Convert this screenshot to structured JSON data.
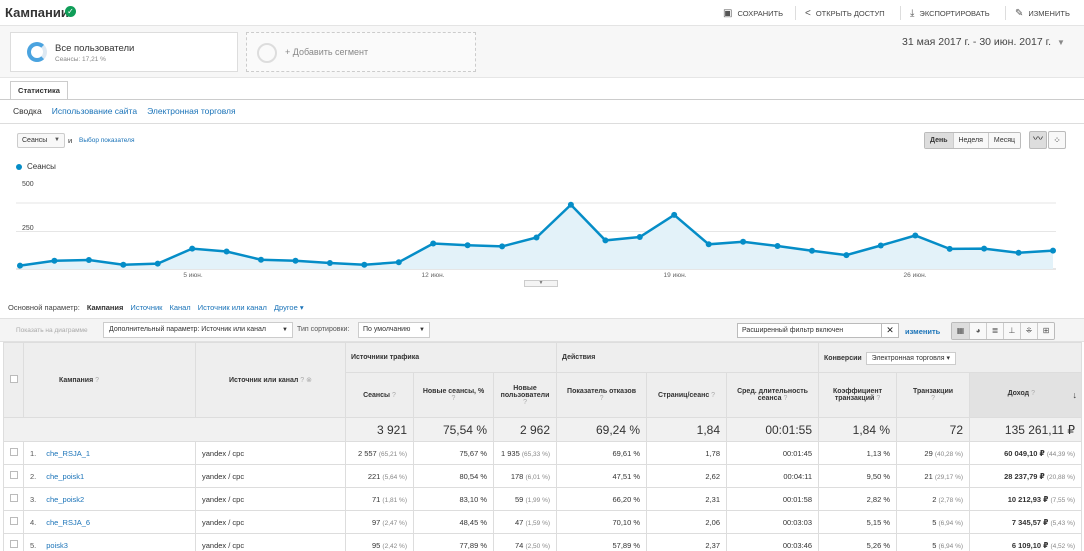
{
  "header": {
    "title": "Кампании",
    "actions": [
      {
        "icon": "save-icon",
        "glyph": "▣",
        "label": "СОХРАНИТЬ"
      },
      {
        "icon": "share-icon",
        "glyph": "<",
        "label": "ОТКРЫТЬ ДОСТУП"
      },
      {
        "icon": "export-icon",
        "glyph": "⤓",
        "label": "ЭКСПОРТИРОВАТЬ"
      },
      {
        "icon": "pencil-icon",
        "glyph": "✎",
        "label": "ИЗМЕНИТЬ"
      }
    ]
  },
  "segments": {
    "name": "Все пользователи",
    "sub": "Сеансы: 17,21 %",
    "add_label": "+ Добавить сегмент"
  },
  "date_range": "31 мая 2017 г. - 30 июн. 2017 г.",
  "tabs": {
    "main": "Статистика",
    "explorer": [
      "Сводка",
      "Использование сайта",
      "Электронная торговля"
    ]
  },
  "metric": {
    "selected": "Сеансы",
    "and": "и",
    "choose": "Выбор показателя"
  },
  "period": [
    "День",
    "Неделя",
    "Месяц"
  ],
  "chart_data": {
    "type": "area",
    "series": [
      {
        "name": "Сеансы",
        "values": [
          20,
          48,
          53,
          25,
          32,
          120,
          103,
          55,
          48,
          35,
          25,
          40,
          150,
          140,
          133,
          185,
          378,
          168,
          188,
          318,
          145,
          160,
          135,
          107,
          82,
          138,
          197,
          118,
          120,
          95,
          108
        ]
      }
    ],
    "x": [
      "31 мая",
      "1 июн.",
      "2 июн.",
      "3 июн.",
      "4 июн.",
      "5 июн.",
      "6 июн.",
      "7 июн.",
      "8 июн.",
      "9 июн.",
      "10 июн.",
      "11 июн.",
      "12 июн.",
      "13 июн.",
      "14 июн.",
      "15 июн.",
      "16 июн.",
      "17 июн.",
      "18 июн.",
      "19 июн.",
      "20 июн.",
      "21 июн.",
      "22 июн.",
      "23 июн.",
      "24 июн.",
      "25 июн.",
      "26 июн.",
      "27 июн.",
      "28 июн.",
      "29 июн.",
      "30 июн."
    ],
    "x_ticks": [
      "5 июн.",
      "12 июн.",
      "19 июн.",
      "26 июн."
    ],
    "y_ticks": [
      "500",
      "250"
    ],
    "ylim": [
      0,
      500
    ],
    "color": "#058dc7"
  },
  "dimension": {
    "label": "Основной параметр:",
    "selected": "Кампания",
    "options": [
      "Источник",
      "Канал",
      "Источник или канал",
      "Другое ▾"
    ]
  },
  "controls": {
    "plot_rows": "Показать на диаграмме",
    "secondary": "Дополнительный параметр: Источник или канал",
    "sort_label": "Тип сортировки:",
    "sort_value": "По умолчанию",
    "filter": "Расширенный фильтр включен",
    "filter_edit": "изменить"
  },
  "table": {
    "groups": {
      "traffic": "Источники трафика",
      "actions": "Действия",
      "conv": "Конверсии",
      "conv_select": "Электронная торговля"
    },
    "columns": {
      "campaign": "Кампания",
      "source": "Источник или канал",
      "sessions": "Сеансы",
      "new_pct": "Новые сеансы, %",
      "new_users": "Новые пользователи",
      "bounce": "Показатель отказов",
      "pages": "Страниц/сеанс",
      "duration": "Сред. длительность сеанса",
      "conv_rate": "Коэффициент транзакций",
      "trans": "Транзакции",
      "revenue": "Доход"
    },
    "totals": {
      "sessions": "3 921",
      "new_pct": "75,54 %",
      "new_users": "2 962",
      "bounce": "69,24 %",
      "pages": "1,84",
      "duration": "00:01:55",
      "conv_rate": "1,84 %",
      "trans": "72",
      "revenue": "135 261,11 ₽"
    },
    "rows": [
      {
        "rank": "1.",
        "campaign": "che_RSJA_1",
        "source": "yandex / cpc",
        "sessions": "2 557",
        "sessions_pct": "(65,21 %)",
        "new_pct": "75,67 %",
        "new_users": "1 935",
        "new_users_pct": "(65,33 %)",
        "bounce": "69,61 %",
        "pages": "1,78",
        "duration": "00:01:45",
        "conv_rate": "1,13 %",
        "trans": "29",
        "trans_pct": "(40,28 %)",
        "revenue": "60 049,10 ₽",
        "revenue_pct": "(44,39 %)"
      },
      {
        "rank": "2.",
        "campaign": "che_poisk1",
        "source": "yandex / cpc",
        "sessions": "221",
        "sessions_pct": "(5,64 %)",
        "new_pct": "80,54 %",
        "new_users": "178",
        "new_users_pct": "(6,01 %)",
        "bounce": "47,51 %",
        "pages": "2,62",
        "duration": "00:04:11",
        "conv_rate": "9,50 %",
        "trans": "21",
        "trans_pct": "(29,17 %)",
        "revenue": "28 237,79 ₽",
        "revenue_pct": "(20,88 %)"
      },
      {
        "rank": "3.",
        "campaign": "che_poisk2",
        "source": "yandex / cpc",
        "sessions": "71",
        "sessions_pct": "(1,81 %)",
        "new_pct": "83,10 %",
        "new_users": "59",
        "new_users_pct": "(1,99 %)",
        "bounce": "66,20 %",
        "pages": "2,31",
        "duration": "00:01:58",
        "conv_rate": "2,82 %",
        "trans": "2",
        "trans_pct": "(2,78 %)",
        "revenue": "10 212,93 ₽",
        "revenue_pct": "(7,55 %)"
      },
      {
        "rank": "4.",
        "campaign": "che_RSJA_6",
        "source": "yandex / cpc",
        "sessions": "97",
        "sessions_pct": "(2,47 %)",
        "new_pct": "48,45 %",
        "new_users": "47",
        "new_users_pct": "(1,59 %)",
        "bounce": "70,10 %",
        "pages": "2,06",
        "duration": "00:03:03",
        "conv_rate": "5,15 %",
        "trans": "5",
        "trans_pct": "(6,94 %)",
        "revenue": "7 345,57 ₽",
        "revenue_pct": "(5,43 %)"
      },
      {
        "rank": "5.",
        "campaign": "poisk3",
        "source": "yandex / cpc",
        "sessions": "95",
        "sessions_pct": "(2,42 %)",
        "new_pct": "77,89 %",
        "new_users": "74",
        "new_users_pct": "(2,50 %)",
        "bounce": "57,89 %",
        "pages": "2,37",
        "duration": "00:03:46",
        "conv_rate": "5,26 %",
        "trans": "5",
        "trans_pct": "(6,94 %)",
        "revenue": "6 109,10 ₽",
        "revenue_pct": "(4,52 %)"
      }
    ]
  }
}
